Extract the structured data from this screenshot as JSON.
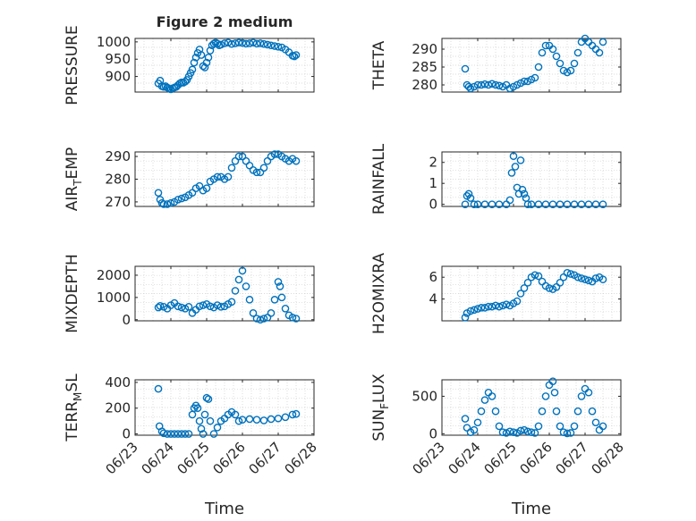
{
  "figure": {
    "title": "Figure 2 medium",
    "xlabel": "Time"
  },
  "colors": {
    "marker": "#0072BD",
    "axis": "#262626",
    "grid": "#d0d0d0",
    "background": "#ffffff"
  },
  "chart_data": [
    {
      "type": "scatter",
      "ylabel": "PRESSURE",
      "ylabel_sub": "",
      "ylim": [
        855,
        1010
      ],
      "yticks": [
        900,
        950,
        1000
      ],
      "xlim": [
        0,
        5
      ],
      "xticks": [
        0,
        1,
        2,
        3,
        4,
        5
      ],
      "xticklabels": [
        "06/23",
        "06/24",
        "06/25",
        "06/26",
        "06/27",
        "06/28"
      ],
      "x": [
        0.65,
        0.7,
        0.75,
        0.8,
        0.85,
        0.9,
        0.95,
        1.0,
        1.05,
        1.1,
        1.15,
        1.2,
        1.25,
        1.3,
        1.35,
        1.4,
        1.45,
        1.5,
        1.55,
        1.6,
        1.65,
        1.7,
        1.75,
        1.8,
        1.85,
        1.9,
        1.95,
        2.0,
        2.05,
        2.1,
        2.15,
        2.2,
        2.25,
        2.3,
        2.35,
        2.4,
        2.5,
        2.6,
        2.7,
        2.8,
        2.9,
        3.0,
        3.1,
        3.2,
        3.3,
        3.4,
        3.5,
        3.6,
        3.7,
        3.8,
        3.9,
        4.0,
        4.1,
        4.2,
        4.3,
        4.4,
        4.45,
        4.5
      ],
      "y": [
        880,
        888,
        872,
        870,
        872,
        868,
        865,
        863,
        866,
        868,
        870,
        875,
        880,
        883,
        882,
        885,
        890,
        900,
        910,
        920,
        940,
        955,
        968,
        978,
        962,
        930,
        926,
        940,
        955,
        975,
        990,
        995,
        998,
        995,
        990,
        992,
        996,
        998,
        994,
        996,
        998,
        997,
        995,
        996,
        998,
        995,
        996,
        994,
        992,
        990,
        988,
        986,
        984,
        978,
        970,
        960,
        958,
        962
      ]
    },
    {
      "type": "scatter",
      "ylabel": "THETA",
      "ylabel_sub": "",
      "ylim": [
        278,
        293
      ],
      "yticks": [
        280,
        285,
        290
      ],
      "xlim": [
        0,
        5
      ],
      "xticks": [
        0,
        1,
        2,
        3,
        4,
        5
      ],
      "xticklabels": [
        "06/23",
        "06/24",
        "06/25",
        "06/26",
        "06/27",
        "06/28"
      ],
      "x": [
        0.65,
        0.7,
        0.75,
        0.8,
        0.9,
        1.0,
        1.1,
        1.2,
        1.3,
        1.4,
        1.5,
        1.6,
        1.7,
        1.8,
        1.9,
        2.0,
        2.1,
        2.2,
        2.3,
        2.4,
        2.5,
        2.6,
        2.7,
        2.8,
        2.9,
        3.0,
        3.1,
        3.2,
        3.3,
        3.4,
        3.5,
        3.6,
        3.7,
        3.8,
        3.9,
        4.0,
        4.1,
        4.2,
        4.3,
        4.4,
        4.5
      ],
      "y": [
        284.5,
        280,
        279.5,
        279,
        279.5,
        280,
        280,
        280.2,
        280,
        280.3,
        280,
        279.8,
        279.5,
        280,
        279,
        279.5,
        280,
        280.5,
        281,
        281,
        281.5,
        282,
        285,
        289,
        291,
        291,
        290,
        288,
        286,
        284,
        283.5,
        284,
        286,
        289,
        292,
        293,
        292,
        291,
        290,
        289,
        292
      ]
    },
    {
      "type": "scatter",
      "ylabel": "AIR",
      "ylabel_sub": "T",
      "ylabel_suffix": "EMP",
      "ylim": [
        268,
        292
      ],
      "yticks": [
        270,
        280,
        290
      ],
      "xlim": [
        0,
        5
      ],
      "xticks": [
        0,
        1,
        2,
        3,
        4,
        5
      ],
      "xticklabels": [
        "06/23",
        "06/24",
        "06/25",
        "06/26",
        "06/27",
        "06/28"
      ],
      "x": [
        0.65,
        0.7,
        0.75,
        0.8,
        0.9,
        1.0,
        1.1,
        1.2,
        1.3,
        1.4,
        1.5,
        1.6,
        1.7,
        1.8,
        1.9,
        2.0,
        2.1,
        2.2,
        2.3,
        2.4,
        2.5,
        2.6,
        2.7,
        2.8,
        2.9,
        3.0,
        3.1,
        3.2,
        3.3,
        3.4,
        3.5,
        3.6,
        3.7,
        3.8,
        3.9,
        4.0,
        4.1,
        4.2,
        4.3,
        4.4,
        4.5
      ],
      "y": [
        274,
        271,
        269.5,
        269,
        269,
        269.5,
        270,
        271,
        271.5,
        272,
        273,
        274,
        276,
        277,
        275,
        276,
        279,
        280,
        281,
        281,
        280,
        281,
        285,
        288,
        290,
        290,
        288,
        286,
        284,
        283,
        283,
        285,
        288,
        290,
        291,
        291,
        290,
        289,
        288,
        289,
        288
      ]
    },
    {
      "type": "scatter",
      "ylabel": "RAINFALL",
      "ylabel_sub": "",
      "ylim": [
        -0.1,
        2.5
      ],
      "yticks": [
        0,
        1,
        2
      ],
      "xlim": [
        0,
        5
      ],
      "xticks": [
        0,
        1,
        2,
        3,
        4,
        5
      ],
      "xticklabels": [
        "06/23",
        "06/24",
        "06/25",
        "06/26",
        "06/27",
        "06/28"
      ],
      "x": [
        0.65,
        0.7,
        0.75,
        0.8,
        0.9,
        1.0,
        1.2,
        1.4,
        1.6,
        1.8,
        1.9,
        1.95,
        2.0,
        2.05,
        2.1,
        2.15,
        2.2,
        2.25,
        2.3,
        2.35,
        2.4,
        2.5,
        2.7,
        2.9,
        3.1,
        3.3,
        3.5,
        3.7,
        3.9,
        4.1,
        4.3,
        4.5
      ],
      "y": [
        0,
        0.4,
        0.5,
        0.3,
        0,
        0,
        0,
        0,
        0,
        0,
        0.2,
        1.5,
        2.3,
        1.8,
        0.8,
        0.5,
        2.1,
        0.7,
        0.5,
        0.3,
        0,
        0,
        0,
        0,
        0,
        0,
        0,
        0,
        0,
        0,
        0,
        0
      ]
    },
    {
      "type": "scatter",
      "ylabel": "MIXDEPTH",
      "ylabel_sub": "",
      "ylim": [
        -50,
        2400
      ],
      "yticks": [
        0,
        1000,
        2000
      ],
      "xlim": [
        0,
        5
      ],
      "xticks": [
        0,
        1,
        2,
        3,
        4,
        5
      ],
      "xticklabels": [
        "06/23",
        "06/24",
        "06/25",
        "06/26",
        "06/27",
        "06/28"
      ],
      "x": [
        0.65,
        0.7,
        0.8,
        0.9,
        1.0,
        1.1,
        1.2,
        1.3,
        1.4,
        1.5,
        1.6,
        1.7,
        1.8,
        1.9,
        2.0,
        2.1,
        2.2,
        2.3,
        2.4,
        2.5,
        2.6,
        2.7,
        2.8,
        2.9,
        3.0,
        3.1,
        3.2,
        3.3,
        3.4,
        3.5,
        3.6,
        3.7,
        3.8,
        3.9,
        4.0,
        4.05,
        4.1,
        4.2,
        4.3,
        4.4,
        4.5
      ],
      "y": [
        550,
        620,
        580,
        500,
        650,
        750,
        600,
        550,
        500,
        580,
        300,
        450,
        600,
        650,
        700,
        600,
        550,
        650,
        580,
        600,
        700,
        800,
        1300,
        1800,
        2200,
        1500,
        900,
        300,
        50,
        0,
        50,
        100,
        300,
        900,
        1700,
        1500,
        1000,
        500,
        200,
        100,
        50
      ]
    },
    {
      "type": "scatter",
      "ylabel": "H2OMIXRA",
      "ylabel_sub": "",
      "ylim": [
        2,
        7
      ],
      "yticks": [
        4,
        6
      ],
      "xlim": [
        0,
        5
      ],
      "xticks": [
        0,
        1,
        2,
        3,
        4,
        5
      ],
      "xticklabels": [
        "06/23",
        "06/24",
        "06/25",
        "06/26",
        "06/27",
        "06/28"
      ],
      "x": [
        0.65,
        0.7,
        0.8,
        0.9,
        1.0,
        1.1,
        1.2,
        1.3,
        1.4,
        1.5,
        1.6,
        1.7,
        1.8,
        1.9,
        2.0,
        2.1,
        2.2,
        2.3,
        2.4,
        2.5,
        2.6,
        2.7,
        2.8,
        2.9,
        3.0,
        3.1,
        3.2,
        3.3,
        3.4,
        3.5,
        3.6,
        3.7,
        3.8,
        3.9,
        4.0,
        4.1,
        4.2,
        4.3,
        4.4,
        4.5
      ],
      "y": [
        2.3,
        2.7,
        2.9,
        3.0,
        3.1,
        3.2,
        3.2,
        3.3,
        3.3,
        3.4,
        3.3,
        3.4,
        3.5,
        3.4,
        3.6,
        3.8,
        4.5,
        5.0,
        5.5,
        6.0,
        6.2,
        6.1,
        5.6,
        5.2,
        5.0,
        4.9,
        5.1,
        5.5,
        6.0,
        6.4,
        6.3,
        6.2,
        6.0,
        5.9,
        5.8,
        5.7,
        5.6,
        5.9,
        6.0,
        5.8
      ]
    },
    {
      "type": "scatter",
      "ylabel": "TERR",
      "ylabel_sub": "M",
      "ylabel_suffix": "SL",
      "ylim": [
        -10,
        420
      ],
      "yticks": [
        0,
        200,
        400
      ],
      "xlim": [
        0,
        5
      ],
      "xticks": [
        0,
        1,
        2,
        3,
        4,
        5
      ],
      "xticklabels": [
        "06/23",
        "06/24",
        "06/25",
        "06/26",
        "06/27",
        "06/28"
      ],
      "x": [
        0.65,
        0.68,
        0.75,
        0.8,
        0.9,
        1.0,
        1.1,
        1.2,
        1.3,
        1.4,
        1.5,
        1.6,
        1.65,
        1.7,
        1.75,
        1.8,
        1.85,
        1.9,
        1.95,
        2.0,
        2.05,
        2.1,
        2.2,
        2.3,
        2.4,
        2.5,
        2.6,
        2.7,
        2.8,
        2.9,
        3.0,
        3.2,
        3.4,
        3.6,
        3.8,
        4.0,
        4.2,
        4.4,
        4.5
      ],
      "y": [
        350,
        60,
        20,
        5,
        0,
        0,
        0,
        0,
        0,
        0,
        0,
        150,
        200,
        220,
        200,
        100,
        40,
        0,
        150,
        280,
        270,
        100,
        0,
        50,
        100,
        120,
        150,
        170,
        150,
        100,
        110,
        115,
        110,
        105,
        115,
        120,
        130,
        150,
        155
      ]
    },
    {
      "type": "scatter",
      "ylabel": "SUN",
      "ylabel_sub": "F",
      "ylabel_suffix": "LUX",
      "ylim": [
        -20,
        720
      ],
      "yticks": [
        0,
        500
      ],
      "xlim": [
        0,
        5
      ],
      "xticks": [
        0,
        1,
        2,
        3,
        4,
        5
      ],
      "xticklabels": [
        "06/23",
        "06/24",
        "06/25",
        "06/26",
        "06/27",
        "06/28"
      ],
      "x": [
        0.65,
        0.7,
        0.8,
        0.9,
        1.0,
        1.1,
        1.2,
        1.3,
        1.4,
        1.5,
        1.6,
        1.7,
        1.8,
        1.9,
        2.0,
        2.1,
        2.2,
        2.3,
        2.4,
        2.5,
        2.6,
        2.7,
        2.8,
        2.9,
        3.0,
        3.1,
        3.15,
        3.2,
        3.3,
        3.4,
        3.5,
        3.6,
        3.7,
        3.8,
        3.9,
        4.0,
        4.1,
        4.2,
        4.3,
        4.4,
        4.5
      ],
      "y": [
        200,
        80,
        20,
        50,
        150,
        300,
        450,
        550,
        500,
        300,
        100,
        20,
        10,
        30,
        20,
        10,
        40,
        50,
        30,
        20,
        10,
        100,
        300,
        500,
        650,
        700,
        550,
        300,
        100,
        20,
        5,
        10,
        100,
        300,
        500,
        600,
        550,
        300,
        150,
        50,
        100
      ]
    }
  ]
}
